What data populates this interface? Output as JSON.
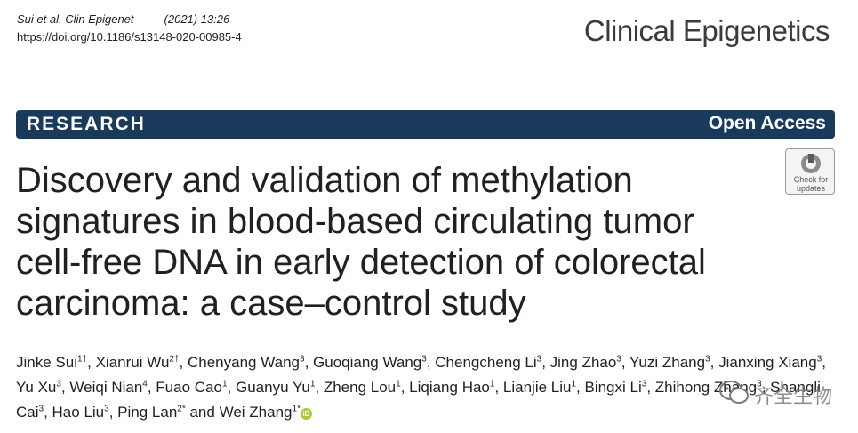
{
  "citation": {
    "authors_journal": "Sui et al. Clin Epigenet",
    "year_volume": "(2021) 13:26",
    "doi": "https://doi.org/10.1186/s13148-020-00985-4"
  },
  "journal_name": "Clinical Epigenetics",
  "banner": {
    "section": "RESEARCH",
    "access": "Open Access"
  },
  "title_lines": [
    "Discovery and validation of methylation",
    "signatures in blood-based circulating tumor",
    "cell-free DNA in early detection of colorectal",
    "carcinoma: a case–control study"
  ],
  "check_updates": {
    "line1": "Check for",
    "line2": "updates"
  },
  "authors": [
    {
      "name": "Jinke Sui",
      "sup": "1†"
    },
    {
      "name": "Xianrui Wu",
      "sup": "2†"
    },
    {
      "name": "Chenyang Wang",
      "sup": "3"
    },
    {
      "name": "Guoqiang Wang",
      "sup": "3"
    },
    {
      "name": "Chengcheng Li",
      "sup": "3"
    },
    {
      "name": "Jing Zhao",
      "sup": "3"
    },
    {
      "name": "Yuzi Zhang",
      "sup": "3"
    },
    {
      "name": "Jianxing Xiang",
      "sup": "3"
    },
    {
      "name": "Yu Xu",
      "sup": "3"
    },
    {
      "name": "Weiqi Nian",
      "sup": "4"
    },
    {
      "name": "Fuao Cao",
      "sup": "1"
    },
    {
      "name": "Guanyu Yu",
      "sup": "1"
    },
    {
      "name": "Zheng Lou",
      "sup": "1"
    },
    {
      "name": "Liqiang Hao",
      "sup": "1"
    },
    {
      "name": "Lianjie Liu",
      "sup": "1"
    },
    {
      "name": "Bingxi Li",
      "sup": "3"
    },
    {
      "name": "Zhihong Zhang",
      "sup": "3"
    },
    {
      "name": "Shangli Cai",
      "sup": "3"
    },
    {
      "name": "Hao Liu",
      "sup": "3"
    },
    {
      "name": "Ping Lan",
      "sup": "2*"
    },
    {
      "name": "Wei Zhang",
      "sup": "1*"
    }
  ],
  "and_word": "and",
  "orcid_icon": "iD",
  "watermark": "齐全生物",
  "colors": {
    "banner": "#1a3a5c",
    "orcid": "#a6ce39"
  }
}
